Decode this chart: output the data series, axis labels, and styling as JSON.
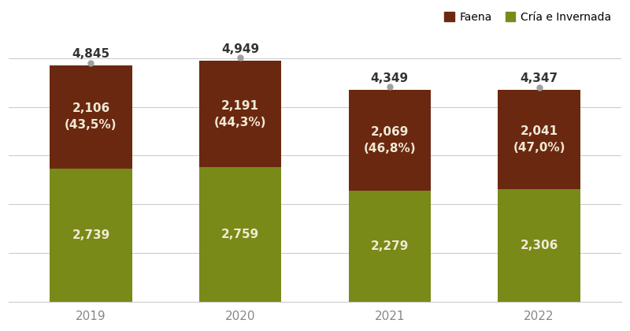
{
  "years": [
    "2019",
    "2020",
    "2021",
    "2022"
  ],
  "faena": [
    2106,
    2191,
    2069,
    2041
  ],
  "cria": [
    2739,
    2759,
    2279,
    2306
  ],
  "totals": [
    4845,
    4949,
    4349,
    4347
  ],
  "faena_pct": [
    "43,5%",
    "44,3%",
    "46,8%",
    "47,0%"
  ],
  "faena_labels": [
    "2,106",
    "2,191",
    "2,069",
    "2,041"
  ],
  "cria_labels": [
    "2,739",
    "2,759",
    "2,279",
    "2,306"
  ],
  "total_labels": [
    "4,845",
    "4,949",
    "4,349",
    "4,347"
  ],
  "color_faena": "#6B2810",
  "color_cria": "#7A8A18",
  "color_dot": "#A0A0A0",
  "bar_width": 0.55,
  "ylim": [
    0,
    5500
  ],
  "legend_faena": "Faena",
  "legend_cria": "Cría e Invernada",
  "background_color": "#FFFFFF",
  "grid_color": "#CCCCCC",
  "text_color_bar": "#F0EAD6",
  "total_fontsize": 11,
  "bar_label_fontsize": 11,
  "tick_fontsize": 11
}
